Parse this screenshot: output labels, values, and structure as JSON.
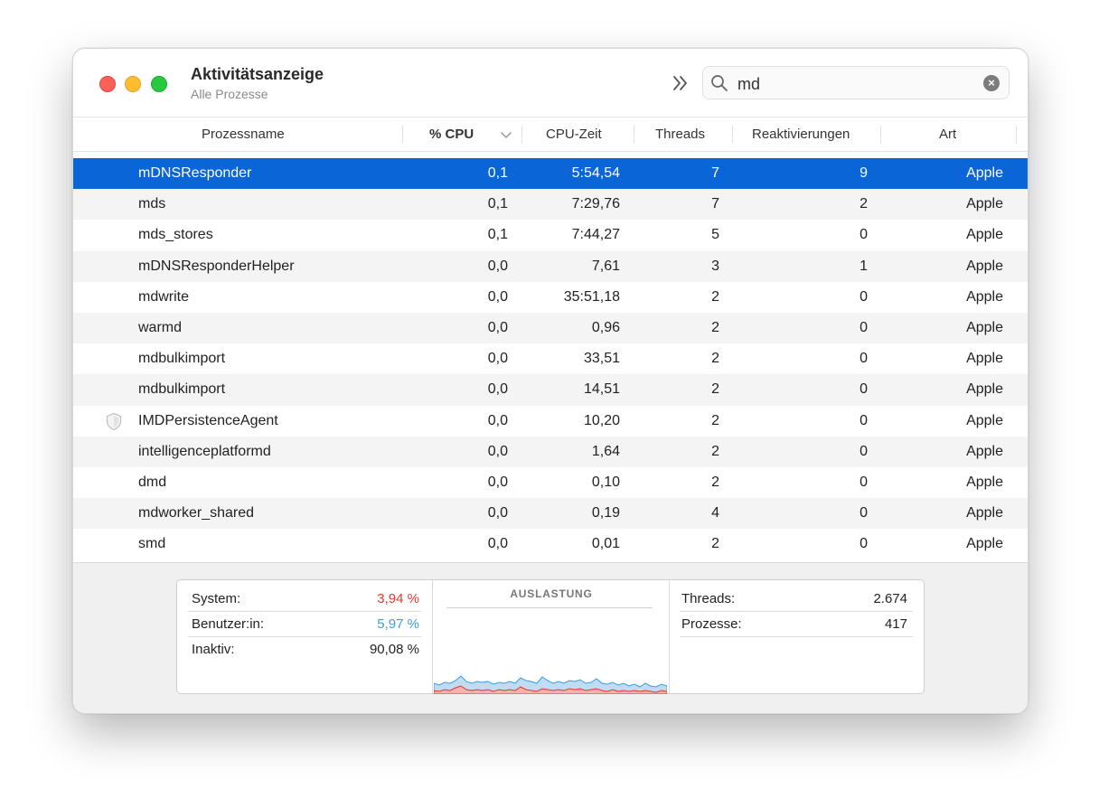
{
  "app": {
    "title": "Aktivitätsanzeige",
    "subtitle": "Alle Prozesse"
  },
  "search": {
    "value": "md"
  },
  "columns": {
    "name": "Prozessname",
    "cpu": "% CPU",
    "cpu_time": "CPU-Zeit",
    "threads": "Threads",
    "wakeups": "Reaktivierungen",
    "kind": "Art"
  },
  "processes": [
    {
      "name": "mDNSResponder",
      "cpu": "0,1",
      "cpu_time": "5:54,54",
      "threads": "7",
      "wakeups": "9",
      "kind": "Apple"
    },
    {
      "name": "mds",
      "cpu": "0,1",
      "cpu_time": "7:29,76",
      "threads": "7",
      "wakeups": "2",
      "kind": "Apple"
    },
    {
      "name": "mds_stores",
      "cpu": "0,1",
      "cpu_time": "7:44,27",
      "threads": "5",
      "wakeups": "0",
      "kind": "Apple"
    },
    {
      "name": "mDNSResponderHelper",
      "cpu": "0,0",
      "cpu_time": "7,61",
      "threads": "3",
      "wakeups": "1",
      "kind": "Apple"
    },
    {
      "name": "mdwrite",
      "cpu": "0,0",
      "cpu_time": "35:51,18",
      "threads": "2",
      "wakeups": "0",
      "kind": "Apple"
    },
    {
      "name": "warmd",
      "cpu": "0,0",
      "cpu_time": "0,96",
      "threads": "2",
      "wakeups": "0",
      "kind": "Apple"
    },
    {
      "name": "mdbulkimport",
      "cpu": "0,0",
      "cpu_time": "33,51",
      "threads": "2",
      "wakeups": "0",
      "kind": "Apple"
    },
    {
      "name": "mdbulkimport",
      "cpu": "0,0",
      "cpu_time": "14,51",
      "threads": "2",
      "wakeups": "0",
      "kind": "Apple"
    },
    {
      "name": "IMDPersistenceAgent",
      "cpu": "0,0",
      "cpu_time": "10,20",
      "threads": "2",
      "wakeups": "0",
      "kind": "Apple"
    },
    {
      "name": "intelligenceplatformd",
      "cpu": "0,0",
      "cpu_time": "1,64",
      "threads": "2",
      "wakeups": "0",
      "kind": "Apple"
    },
    {
      "name": "dmd",
      "cpu": "0,0",
      "cpu_time": "0,10",
      "threads": "2",
      "wakeups": "0",
      "kind": "Apple"
    },
    {
      "name": "mdworker_shared",
      "cpu": "0,0",
      "cpu_time": "0,19",
      "threads": "4",
      "wakeups": "0",
      "kind": "Apple"
    },
    {
      "name": "smd",
      "cpu": "0,0",
      "cpu_time": "0,01",
      "threads": "2",
      "wakeups": "0",
      "kind": "Apple"
    }
  ],
  "summary": {
    "system_label": "System:",
    "system_value": "3,94 %",
    "user_label": "Benutzer:in:",
    "user_value": "5,97 %",
    "idle_label": "Inaktiv:",
    "idle_value": "90,08 %",
    "graph_title": "AUSLASTUNG",
    "threads_label": "Threads:",
    "threads_value": "2.674",
    "processes_label": "Prozesse:",
    "processes_value": "417"
  },
  "colors": {
    "selection": "#0a65d6",
    "system": "#e8372c",
    "user": "#3b9ee0"
  },
  "icons": {
    "row_8": "shield-icon"
  }
}
